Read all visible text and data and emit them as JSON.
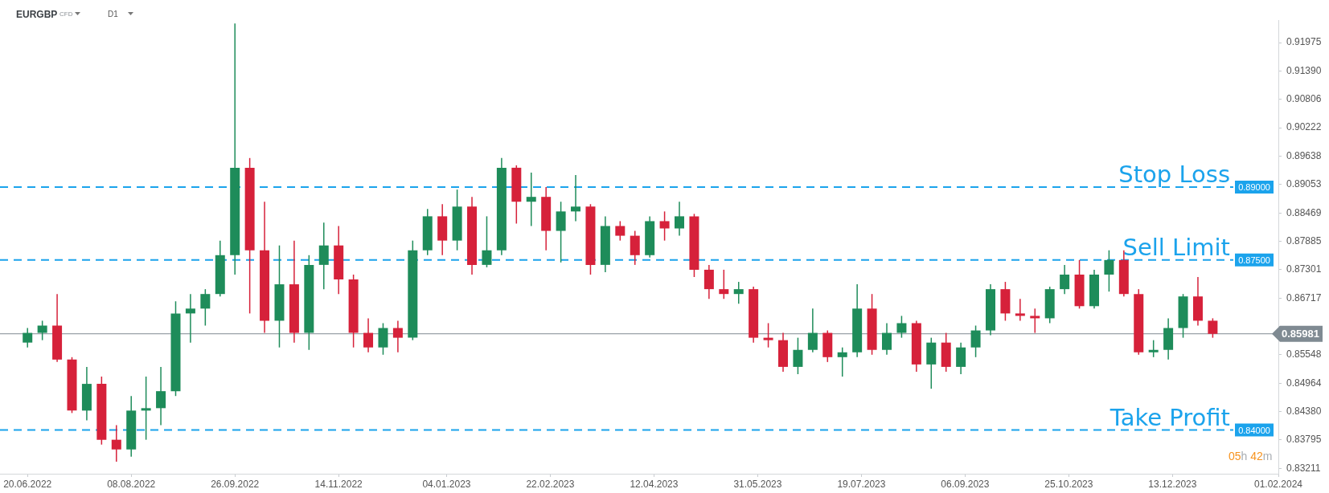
{
  "chart_data": {
    "type": "candlestick",
    "title": "EURGBP",
    "subtitle": "CFD",
    "annotations": [
      "D1",
      "05h 42m",
      "0.89000",
      "0.87500",
      "0.84000"
    ],
    "x": [
      "2022-06-20",
      "2022-06-27",
      "2022-07-04",
      "2022-07-11",
      "2022-07-18",
      "2022-07-25",
      "2022-08-01",
      "2022-08-08",
      "2022-08-15",
      "2022-08-22",
      "2022-08-29",
      "2022-09-05",
      "2022-09-12",
      "2022-09-19",
      "2022-09-26",
      "2022-10-03",
      "2022-10-10",
      "2022-10-17",
      "2022-10-24",
      "2022-10-31",
      "2022-11-07",
      "2022-11-14",
      "2022-11-21",
      "2022-11-28",
      "2022-12-05",
      "2022-12-12",
      "2022-12-19",
      "2022-12-26",
      "2023-01-02",
      "2023-01-09",
      "2023-01-16",
      "2023-01-23",
      "2023-01-30",
      "2023-02-06",
      "2023-02-13",
      "2023-02-20",
      "2023-02-27",
      "2023-03-06",
      "2023-03-13",
      "2023-03-20",
      "2023-03-27",
      "2023-04-03",
      "2023-04-10",
      "2023-04-17",
      "2023-04-24",
      "2023-05-01",
      "2023-05-08",
      "2023-05-15",
      "2023-05-22",
      "2023-05-29",
      "2023-06-05",
      "2023-06-12",
      "2023-06-19",
      "2023-06-26",
      "2023-07-03",
      "2023-07-10",
      "2023-07-17",
      "2023-07-24",
      "2023-07-31",
      "2023-08-07",
      "2023-08-14",
      "2023-08-21",
      "2023-08-28",
      "2023-09-04",
      "2023-09-11",
      "2023-09-18",
      "2023-09-25",
      "2023-10-02",
      "2023-10-09",
      "2023-10-16",
      "2023-10-23",
      "2023-10-30",
      "2023-11-06",
      "2023-11-13",
      "2023-11-20",
      "2023-11-27",
      "2023-12-04",
      "2023-12-11",
      "2023-12-18",
      "2023-12-25",
      "2024-01-01"
    ],
    "ohlc": [
      [
        0.858,
        0.861,
        0.857,
        0.86
      ],
      [
        0.86,
        0.8625,
        0.8585,
        0.8615
      ],
      [
        0.8615,
        0.868,
        0.854,
        0.8545
      ],
      [
        0.8545,
        0.855,
        0.8435,
        0.844
      ],
      [
        0.844,
        0.853,
        0.842,
        0.8495
      ],
      [
        0.8495,
        0.851,
        0.837,
        0.838
      ],
      [
        0.838,
        0.841,
        0.8335,
        0.836
      ],
      [
        0.836,
        0.847,
        0.8345,
        0.844
      ],
      [
        0.844,
        0.851,
        0.838,
        0.8445
      ],
      [
        0.8445,
        0.853,
        0.841,
        0.848
      ],
      [
        0.848,
        0.8665,
        0.847,
        0.864
      ],
      [
        0.864,
        0.868,
        0.858,
        0.865
      ],
      [
        0.865,
        0.869,
        0.8615,
        0.868
      ],
      [
        0.868,
        0.879,
        0.8675,
        0.876
      ],
      [
        0.876,
        0.9237,
        0.872,
        0.894
      ],
      [
        0.894,
        0.896,
        0.864,
        0.877
      ],
      [
        0.877,
        0.887,
        0.86,
        0.8625
      ],
      [
        0.8625,
        0.878,
        0.857,
        0.87
      ],
      [
        0.87,
        0.879,
        0.858,
        0.86
      ],
      [
        0.86,
        0.876,
        0.8565,
        0.874
      ],
      [
        0.874,
        0.8827,
        0.869,
        0.878
      ],
      [
        0.878,
        0.882,
        0.868,
        0.871
      ],
      [
        0.871,
        0.872,
        0.857,
        0.86
      ],
      [
        0.86,
        0.863,
        0.856,
        0.857
      ],
      [
        0.857,
        0.862,
        0.8555,
        0.861
      ],
      [
        0.861,
        0.8625,
        0.856,
        0.859
      ],
      [
        0.859,
        0.879,
        0.8585,
        0.877
      ],
      [
        0.877,
        0.8855,
        0.876,
        0.884
      ],
      [
        0.884,
        0.8865,
        0.876,
        0.879
      ],
      [
        0.879,
        0.8895,
        0.877,
        0.886
      ],
      [
        0.886,
        0.888,
        0.872,
        0.874
      ],
      [
        0.874,
        0.884,
        0.8735,
        0.877
      ],
      [
        0.877,
        0.896,
        0.876,
        0.894
      ],
      [
        0.894,
        0.8945,
        0.8825,
        0.887
      ],
      [
        0.887,
        0.893,
        0.882,
        0.888
      ],
      [
        0.888,
        0.89,
        0.877,
        0.881
      ],
      [
        0.881,
        0.887,
        0.8745,
        0.885
      ],
      [
        0.885,
        0.8925,
        0.883,
        0.886
      ],
      [
        0.886,
        0.8865,
        0.872,
        0.874
      ],
      [
        0.874,
        0.884,
        0.8725,
        0.882
      ],
      [
        0.882,
        0.883,
        0.879,
        0.88
      ],
      [
        0.88,
        0.881,
        0.874,
        0.876
      ],
      [
        0.876,
        0.884,
        0.8755,
        0.883
      ],
      [
        0.883,
        0.885,
        0.879,
        0.8815
      ],
      [
        0.8815,
        0.887,
        0.88,
        0.884
      ],
      [
        0.884,
        0.8845,
        0.8715,
        0.873
      ],
      [
        0.873,
        0.874,
        0.867,
        0.869
      ],
      [
        0.869,
        0.873,
        0.867,
        0.868
      ],
      [
        0.868,
        0.8705,
        0.866,
        0.869
      ],
      [
        0.869,
        0.8695,
        0.858,
        0.859
      ],
      [
        0.859,
        0.862,
        0.857,
        0.8585
      ],
      [
        0.8585,
        0.86,
        0.852,
        0.853
      ],
      [
        0.853,
        0.859,
        0.8515,
        0.8565
      ],
      [
        0.8565,
        0.865,
        0.856,
        0.86
      ],
      [
        0.86,
        0.8605,
        0.854,
        0.855
      ],
      [
        0.855,
        0.857,
        0.851,
        0.856
      ],
      [
        0.856,
        0.87,
        0.855,
        0.865
      ],
      [
        0.865,
        0.868,
        0.8555,
        0.8565
      ],
      [
        0.8565,
        0.862,
        0.8555,
        0.86
      ],
      [
        0.86,
        0.8635,
        0.859,
        0.862
      ],
      [
        0.862,
        0.8625,
        0.852,
        0.8535
      ],
      [
        0.8535,
        0.859,
        0.8485,
        0.858
      ],
      [
        0.858,
        0.86,
        0.852,
        0.853
      ],
      [
        0.853,
        0.858,
        0.8515,
        0.857
      ],
      [
        0.857,
        0.8615,
        0.855,
        0.8605
      ],
      [
        0.8605,
        0.87,
        0.8595,
        0.869
      ],
      [
        0.869,
        0.8705,
        0.8625,
        0.864
      ],
      [
        0.864,
        0.867,
        0.8625,
        0.8635
      ],
      [
        0.8635,
        0.865,
        0.86,
        0.863
      ],
      [
        0.863,
        0.8695,
        0.862,
        0.869
      ],
      [
        0.869,
        0.874,
        0.868,
        0.872
      ],
      [
        0.872,
        0.875,
        0.865,
        0.8655
      ],
      [
        0.8655,
        0.873,
        0.865,
        0.872
      ],
      [
        0.872,
        0.877,
        0.8685,
        0.875
      ],
      [
        0.875,
        0.877,
        0.8675,
        0.868
      ],
      [
        0.868,
        0.869,
        0.8555,
        0.856
      ],
      [
        0.856,
        0.8585,
        0.855,
        0.8565
      ],
      [
        0.8565,
        0.863,
        0.8545,
        0.861
      ],
      [
        0.861,
        0.868,
        0.859,
        0.8675
      ],
      [
        0.8675,
        0.8715,
        0.8615,
        0.8625
      ],
      [
        0.8625,
        0.863,
        0.859,
        0.8598
      ]
    ],
    "colors": [
      "#1e8c5a",
      "#1e8c5a",
      "#d6213a",
      "#d6213a",
      "#1e8c5a",
      "#d6213a",
      "#d6213a",
      "#1e8c5a",
      "#1e8c5a",
      "#1e8c5a",
      "#1e8c5a",
      "#1e8c5a",
      "#1e8c5a",
      "#1e8c5a",
      "#1e8c5a",
      "#d6213a",
      "#d6213a",
      "#1e8c5a",
      "#d6213a",
      "#1e8c5a",
      "#1e8c5a",
      "#d6213a",
      "#d6213a",
      "#d6213a",
      "#1e8c5a",
      "#d6213a",
      "#1e8c5a",
      "#1e8c5a",
      "#d6213a",
      "#1e8c5a",
      "#d6213a",
      "#1e8c5a",
      "#1e8c5a",
      "#d6213a",
      "#1e8c5a",
      "#d6213a",
      "#1e8c5a",
      "#1e8c5a",
      "#d6213a",
      "#1e8c5a",
      "#d6213a",
      "#d6213a",
      "#1e8c5a",
      "#d6213a",
      "#1e8c5a",
      "#d6213a",
      "#d6213a",
      "#d6213a",
      "#1e8c5a",
      "#d6213a",
      "#d6213a",
      "#d6213a",
      "#1e8c5a",
      "#1e8c5a",
      "#d6213a",
      "#1e8c5a",
      "#1e8c5a",
      "#d6213a",
      "#1e8c5a",
      "#1e8c5a",
      "#d6213a",
      "#1e8c5a",
      "#d6213a",
      "#1e8c5a",
      "#1e8c5a",
      "#1e8c5a",
      "#d6213a",
      "#d6213a",
      "#d6213a",
      "#1e8c5a",
      "#1e8c5a",
      "#d6213a",
      "#1e8c5a",
      "#1e8c5a",
      "#d6213a",
      "#d6213a",
      "#1e8c5a",
      "#1e8c5a",
      "#1e8c5a",
      "#d6213a",
      "#d6213a"
    ],
    "xlim": [
      "2022-06-07",
      "2024-02-01"
    ],
    "xticks": [
      {
        "value": "2022-06-20",
        "label": "20.06.2022"
      },
      {
        "value": "2022-08-08",
        "label": "08.08.2022"
      },
      {
        "value": "2022-09-26",
        "label": "26.09.2022"
      },
      {
        "value": "2022-11-14",
        "label": "14.11.2022"
      },
      {
        "value": "2023-01-04",
        "label": "04.01.2023"
      },
      {
        "value": "2023-02-22",
        "label": "22.02.2023"
      },
      {
        "value": "2023-04-12",
        "label": "12.04.2023"
      },
      {
        "value": "2023-05-31",
        "label": "31.05.2023"
      },
      {
        "value": "2023-07-19",
        "label": "19.07.2023"
      },
      {
        "value": "2023-09-06",
        "label": "06.09.2023"
      },
      {
        "value": "2023-10-25",
        "label": "25.10.2023"
      },
      {
        "value": "2023-12-13",
        "label": "13.12.2023"
      },
      {
        "value": "2024-02-01",
        "label": "01.02.2024"
      }
    ],
    "ylim": [
      0.831,
      0.9244
    ],
    "yticks": [
      0.91975,
      {
        "value": 0.9139,
        "label": "0.91390"
      },
      0.90806,
      0.90222,
      0.89638,
      0.89053,
      0.88469,
      0.87885,
      0.87301,
      0.86717,
      {
        "value": 0.86132,
        "label": null
      },
      0.85548,
      0.84964,
      {
        "value": 0.8438,
        "label": "0.84380"
      },
      0.83795,
      0.83211
    ],
    "ref_lines": [
      {
        "axis": "y",
        "value": 0.89,
        "label": "Stop Loss",
        "color": "#1ba3ec",
        "line_style": "dashed"
      },
      {
        "axis": "y",
        "value": 0.875,
        "label": "Sell Limit",
        "color": "#1ba3ec",
        "line_style": "dashed"
      },
      {
        "axis": "y",
        "value": 0.84,
        "label": "Take Profit",
        "color": "#1ba3ec",
        "line_style": "dashed"
      },
      {
        "axis": "y",
        "value": 0.85981,
        "label": "0.85981",
        "color": "#7f8a92",
        "line_style": "solid"
      }
    ],
    "grid": false,
    "legend": false
  }
}
